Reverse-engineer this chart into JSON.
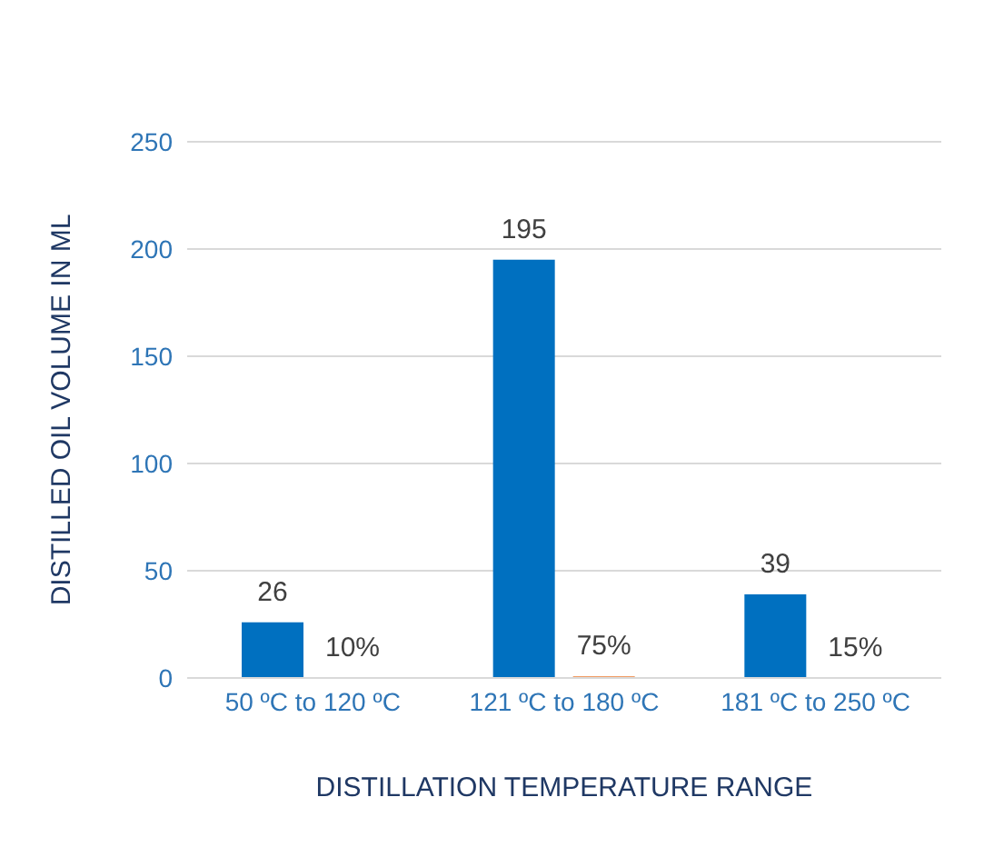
{
  "chart_data": {
    "type": "bar",
    "xlabel": "DISTILLATION TEMPERATURE RANGE",
    "ylabel": "DISTILLED OIL VOLUME IN ML",
    "categories": [
      "50 ºC to 120 ºC",
      "121 ºC to 180 ºC",
      "181 ºC to 250 ºC"
    ],
    "series": [
      {
        "color": "#0070c0",
        "values": [
          26,
          195,
          39
        ],
        "value_labels": [
          "26",
          "195",
          "39"
        ]
      },
      {
        "color": "#ed7d31",
        "values": [
          0.1,
          0.75,
          0.15
        ],
        "value_labels": [
          "10%",
          "75%",
          "15%"
        ]
      }
    ],
    "ylim": [
      0,
      250
    ],
    "yticks": [
      0,
      50,
      100,
      150,
      200,
      250
    ],
    "grid": "y",
    "legend": false
  }
}
